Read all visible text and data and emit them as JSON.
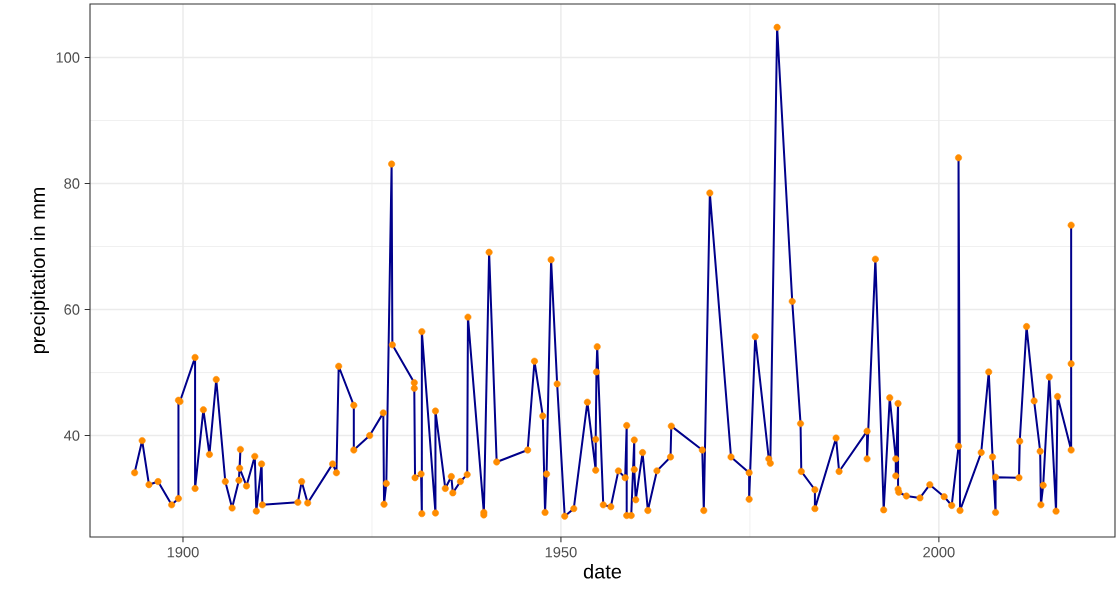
{
  "chart_data": {
    "type": "line",
    "xlabel": "date",
    "ylabel": "precipitation in mm",
    "x": [
      1893.6,
      1894.6,
      1895.5,
      1896.7,
      1898.5,
      1899.4,
      1899.4,
      1899.6,
      1901.6,
      1901.6,
      1902.7,
      1903.5,
      1904.4,
      1905.6,
      1906.5,
      1907.4,
      1907.6,
      1907.5,
      1908.4,
      1909.5,
      1909.7,
      1910.4,
      1910.5,
      1915.2,
      1915.7,
      1916.5,
      1919.8,
      1920.3,
      1920.6,
      1922.6,
      1922.6,
      1924.7,
      1926.5,
      1926.6,
      1926.9,
      1927.6,
      1927.7,
      1930.6,
      1930.6,
      1930.7,
      1931.5,
      1931.6,
      1931.6,
      1933.4,
      1933.4,
      1934.7,
      1935.5,
      1935.7,
      1936.7,
      1937.6,
      1937.7,
      1939.8,
      1939.8,
      1940.5,
      1941.5,
      1945.6,
      1946.5,
      1947.6,
      1947.9,
      1948.1,
      1948.7,
      1949.5,
      1950.5,
      1951.7,
      1953.5,
      1954.6,
      1954.6,
      1954.7,
      1954.8,
      1955.6,
      1956.6,
      1957.6,
      1958.5,
      1958.7,
      1958.7,
      1959.3,
      1959.7,
      1959.7,
      1959.9,
      1960.8,
      1961.5,
      1962.7,
      1964.5,
      1964.6,
      1968.7,
      1968.9,
      1969.7,
      1972.5,
      1974.9,
      1974.9,
      1975.7,
      1977.5,
      1977.7,
      1978.6,
      1980.6,
      1981.7,
      1981.8,
      1983.6,
      1983.6,
      1986.4,
      1986.8,
      1990.5,
      1990.5,
      1991.6,
      1992.7,
      1993.5,
      1994.3,
      1994.3,
      1994.6,
      1994.6,
      1994.7,
      1995.7,
      1997.5,
      1998.8,
      2000.7,
      2001.7,
      2002.6,
      2002.6,
      2002.8,
      2005.6,
      2006.6,
      2007.1,
      2007.5,
      2007.5,
      2010.6,
      2010.7,
      2011.6,
      2012.6,
      2013.4,
      2013.5,
      2013.8,
      2014.6,
      2015.5,
      2015.7,
      2017.5,
      2017.5,
      2017.5
    ],
    "series": [
      {
        "color": "#00008b",
        "marker": "none",
        "line_style": "solid",
        "values": [
          34.1,
          39.2,
          32.2,
          32.7,
          29.0,
          30.0,
          45.6,
          45.4,
          52.4,
          31.6,
          44.1,
          37.0,
          48.9,
          32.7,
          28.5,
          32.9,
          37.8,
          34.8,
          32.0,
          36.7,
          28.0,
          35.5,
          29.0,
          29.4,
          32.7,
          29.3,
          35.5,
          34.1,
          51.0,
          44.8,
          37.7,
          40.0,
          43.6,
          29.1,
          32.4,
          83.1,
          54.4,
          48.4,
          47.5,
          33.3,
          33.9,
          27.6,
          56.5,
          27.7,
          43.9,
          31.6,
          33.5,
          30.9,
          32.7,
          33.8,
          58.8,
          27.8,
          27.4,
          69.1,
          35.8,
          37.7,
          51.8,
          43.1,
          27.8,
          33.9,
          67.9,
          48.2,
          27.2,
          28.4,
          45.3,
          34.5,
          39.4,
          50.1,
          54.1,
          29.0,
          28.7,
          34.4,
          33.3,
          41.6,
          27.3,
          27.3,
          39.3,
          34.6,
          29.8,
          37.3,
          28.1,
          34.4,
          36.6,
          41.5,
          37.7,
          28.1,
          78.5,
          36.6,
          34.1,
          29.9,
          55.7,
          36.3,
          35.6,
          104.8,
          61.3,
          41.9,
          34.3,
          31.4,
          28.4,
          39.6,
          34.3,
          40.7,
          36.3,
          68.0,
          28.2,
          46.0,
          36.3,
          33.6,
          45.1,
          31.5,
          31.0,
          30.4,
          30.1,
          32.2,
          30.3,
          28.9,
          38.3,
          84.1,
          28.1,
          37.3,
          50.1,
          36.6,
          27.8,
          33.4,
          33.3,
          39.1,
          57.3,
          45.5,
          37.5,
          29.0,
          32.1,
          49.3,
          28.0,
          46.2,
          37.7,
          73.4,
          51.4
        ]
      },
      {
        "type": "scatter",
        "color": "#ff8c00",
        "marker": "circle",
        "values": [
          34.1,
          39.2,
          32.2,
          32.7,
          29.0,
          30.0,
          45.6,
          45.4,
          52.4,
          31.6,
          44.1,
          37.0,
          48.9,
          32.7,
          28.5,
          32.9,
          37.8,
          34.8,
          32.0,
          36.7,
          28.0,
          35.5,
          29.0,
          29.4,
          32.7,
          29.3,
          35.5,
          34.1,
          51.0,
          44.8,
          37.7,
          40.0,
          43.6,
          29.1,
          32.4,
          83.1,
          54.4,
          48.4,
          47.5,
          33.3,
          33.9,
          27.6,
          56.5,
          27.7,
          43.9,
          31.6,
          33.5,
          30.9,
          32.7,
          33.8,
          58.8,
          27.8,
          27.4,
          69.1,
          35.8,
          37.7,
          51.8,
          43.1,
          27.8,
          33.9,
          67.9,
          48.2,
          27.2,
          28.4,
          45.3,
          34.5,
          39.4,
          50.1,
          54.1,
          29.0,
          28.7,
          34.4,
          33.3,
          41.6,
          27.3,
          27.3,
          39.3,
          34.6,
          29.8,
          37.3,
          28.1,
          34.4,
          36.6,
          41.5,
          37.7,
          28.1,
          78.5,
          36.6,
          34.1,
          29.9,
          55.7,
          36.3,
          35.6,
          104.8,
          61.3,
          41.9,
          34.3,
          31.4,
          28.4,
          39.6,
          34.3,
          40.7,
          36.3,
          68.0,
          28.2,
          46.0,
          36.3,
          33.6,
          45.1,
          31.5,
          31.0,
          30.4,
          30.1,
          32.2,
          30.3,
          28.9,
          38.3,
          84.1,
          28.1,
          37.3,
          50.1,
          36.6,
          27.8,
          33.4,
          33.3,
          39.1,
          57.3,
          45.5,
          37.5,
          29.0,
          32.1,
          49.3,
          28.0,
          46.2,
          37.7,
          73.4,
          51.4
        ]
      }
    ],
    "xlim": [
      1887.7,
      2023.3
    ],
    "ylim": [
      23.9,
      108.5
    ],
    "xticks": [
      1900,
      1950,
      2000
    ],
    "yticks": [
      40,
      60,
      80,
      100
    ],
    "grid": true
  }
}
